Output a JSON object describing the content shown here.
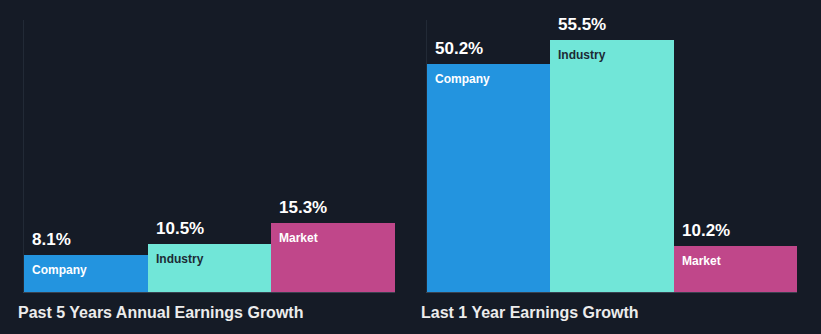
{
  "chart_data": [
    {
      "type": "bar",
      "title": "Past 5 Years Annual Earnings Growth",
      "categories": [
        "Company",
        "Industry",
        "Market"
      ],
      "values": [
        8.1,
        10.5,
        15.3
      ],
      "value_labels": [
        "8.1%",
        "10.5%",
        "15.3%"
      ],
      "colors": [
        "#2394df",
        "#71e6d8",
        "#c0478a"
      ],
      "ylim": [
        0,
        60
      ],
      "yticks": [],
      "grid": false,
      "data_labels": true,
      "tick_labels": false
    },
    {
      "type": "bar",
      "title": "Last 1 Year Earnings Growth",
      "categories": [
        "Company",
        "Industry",
        "Market"
      ],
      "values": [
        50.2,
        55.5,
        10.2
      ],
      "value_labels": [
        "50.2%",
        "55.5%",
        "10.2%"
      ],
      "colors": [
        "#2394df",
        "#71e6d8",
        "#c0478a"
      ],
      "ylim": [
        0,
        60
      ],
      "yticks": [],
      "grid": false,
      "data_labels": true,
      "tick_labels": false
    }
  ]
}
